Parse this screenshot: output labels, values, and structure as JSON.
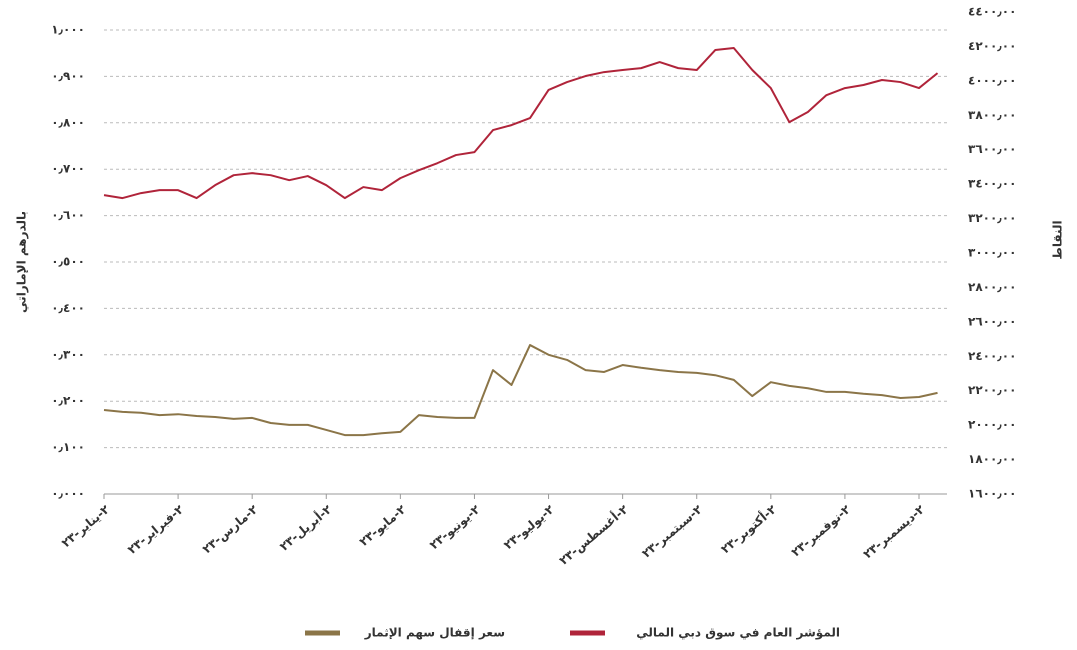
{
  "chart_data": {
    "type": "line",
    "y_label": "بالدرهم الإماراتي",
    "y2_label": "النقاط",
    "categories": [
      "٢-يناير-٢٣",
      null,
      null,
      null,
      "٢-فبراير-٢٣",
      null,
      null,
      null,
      "٢-مارس-٢٣",
      null,
      null,
      null,
      "٢-أبريل-٢٣",
      null,
      null,
      null,
      "٢-مايو-٢٣",
      null,
      null,
      null,
      "٢-يونيو-٢٣",
      null,
      null,
      null,
      "٢-يوليو-٢٣",
      null,
      null,
      null,
      "٢-أغسطس-٢٣",
      null,
      null,
      null,
      "٢-سبتمبر-٢٣",
      null,
      null,
      null,
      "٢-أكتوبر-٢٣",
      null,
      null,
      null,
      "٢-نوفمبر-٢٣",
      null,
      null,
      null,
      "٢-ديسمبر-٢٣",
      null
    ],
    "series": [
      {
        "name": "المؤشر العام في سوق دبي المالي",
        "color": "#b0243a",
        "axis": "y2",
        "values": [
          3336,
          3319,
          3348,
          3365,
          3365,
          3319,
          3394,
          3452,
          3464,
          3452,
          3423,
          3447,
          3394,
          3319,
          3383,
          3365,
          3435,
          3481,
          3522,
          3569,
          3586,
          3714,
          3743,
          3784,
          3947,
          3993,
          4028,
          4051,
          4063,
          4074,
          4109,
          4074,
          4063,
          4179,
          4191,
          4063,
          3958,
          3760,
          3819,
          3917,
          3958,
          3976,
          4005,
          3993,
          3958,
          4045
        ]
      },
      {
        "name": "سعر إقفال سهم الإثمار",
        "color": "#8b7548",
        "values": [
          0.181,
          0.177,
          0.175,
          0.17,
          0.172,
          0.168,
          0.166,
          0.162,
          0.164,
          0.153,
          0.149,
          0.149,
          0.138,
          0.127,
          0.127,
          0.131,
          0.134,
          0.17,
          0.166,
          0.164,
          0.164,
          0.267,
          0.235,
          0.321,
          0.3,
          0.289,
          0.267,
          0.263,
          0.278,
          0.272,
          0.267,
          0.263,
          0.261,
          0.256,
          0.246,
          0.211,
          0.241,
          0.233,
          0.228,
          0.22,
          0.22,
          0.216,
          0.213,
          0.207,
          0.209,
          0.218
        ]
      }
    ],
    "ylim": [
      0,
      1
    ],
    "yticks": [
      {
        "value": 0,
        "label": "٠٫٠٠٠"
      },
      {
        "value": 0.1,
        "label": "٠٫١٠٠"
      },
      {
        "value": 0.2,
        "label": "٠٫٢٠٠"
      },
      {
        "value": 0.3,
        "label": "٠٫٣٠٠"
      },
      {
        "value": 0.4,
        "label": "٠٫٤٠٠"
      },
      {
        "value": 0.5,
        "label": "٠٫٥٠٠"
      },
      {
        "value": 0.6,
        "label": "٠٫٦٠٠"
      },
      {
        "value": 0.7,
        "label": "٠٫٧٠٠"
      },
      {
        "value": 0.8,
        "label": "٠٫٨٠٠"
      },
      {
        "value": 0.9,
        "label": "٠٫٩٠٠"
      },
      {
        "value": 1,
        "label": "١٫٠٠٠"
      }
    ],
    "y2lim": [
      1600,
      4400
    ],
    "y2ticks": [
      {
        "value": 1600,
        "label": "١٦٠٠٫٠٠"
      },
      {
        "value": 1800,
        "label": "١٨٠٠٫٠٠"
      },
      {
        "value": 2000,
        "label": "٢٠٠٠٫٠٠"
      },
      {
        "value": 2200,
        "label": "٢٢٠٠٫٠٠"
      },
      {
        "value": 2400,
        "label": "٢٤٠٠٫٠٠"
      },
      {
        "value": 2600,
        "label": "٢٦٠٠٫٠٠"
      },
      {
        "value": 2800,
        "label": "٢٨٠٠٫٠٠"
      },
      {
        "value": 3000,
        "label": "٣٠٠٠٫٠٠"
      },
      {
        "value": 3200,
        "label": "٣٢٠٠٫٠٠"
      },
      {
        "value": 3400,
        "label": "٣٤٠٠٫٠٠"
      },
      {
        "value": 3600,
        "label": "٣٦٠٠٫٠٠"
      },
      {
        "value": 3800,
        "label": "٣٨٠٠٫٠٠"
      },
      {
        "value": 4000,
        "label": "٤٠٠٠٫٠٠"
      },
      {
        "value": 4200,
        "label": "٤٢٠٠٫٠٠"
      },
      {
        "value": 4400,
        "label": "٤٤٠٠٫٠٠"
      }
    ],
    "grid": true
  }
}
